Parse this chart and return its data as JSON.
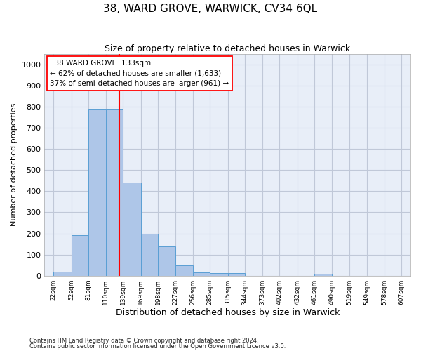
{
  "title": "38, WARD GROVE, WARWICK, CV34 6QL",
  "subtitle": "Size of property relative to detached houses in Warwick",
  "xlabel": "Distribution of detached houses by size in Warwick",
  "ylabel": "Number of detached properties",
  "footnote1": "Contains HM Land Registry data © Crown copyright and database right 2024.",
  "footnote2": "Contains public sector information licensed under the Open Government Licence v3.0.",
  "bin_labels": [
    "22sqm",
    "52sqm",
    "81sqm",
    "110sqm",
    "139sqm",
    "169sqm",
    "198sqm",
    "227sqm",
    "256sqm",
    "285sqm",
    "315sqm",
    "344sqm",
    "373sqm",
    "402sqm",
    "432sqm",
    "461sqm",
    "490sqm",
    "519sqm",
    "549sqm",
    "578sqm",
    "607sqm"
  ],
  "bin_edges": [
    22,
    52,
    81,
    110,
    139,
    169,
    198,
    227,
    256,
    285,
    315,
    344,
    373,
    402,
    432,
    461,
    490,
    519,
    549,
    578,
    607
  ],
  "bar_heights": [
    20,
    192,
    790,
    790,
    440,
    197,
    140,
    50,
    15,
    13,
    13,
    0,
    0,
    0,
    0,
    10,
    0,
    0,
    0,
    0
  ],
  "bar_color": "#aec6e8",
  "bar_edge_color": "#5a9fd4",
  "property_size": 133,
  "vline_color": "red",
  "ylim": [
    0,
    1050
  ],
  "yticks": [
    0,
    100,
    200,
    300,
    400,
    500,
    600,
    700,
    800,
    900,
    1000
  ],
  "annotation_title": "38 WARD GROVE: 133sqm",
  "annotation_line1": "← 62% of detached houses are smaller (1,633)",
  "annotation_line2": "37% of semi-detached houses are larger (961) →",
  "grid_color": "#c0c8d8",
  "background_color": "#e8eef8",
  "title_fontsize": 11,
  "subtitle_fontsize": 9,
  "ylabel_fontsize": 8,
  "xlabel_fontsize": 9
}
